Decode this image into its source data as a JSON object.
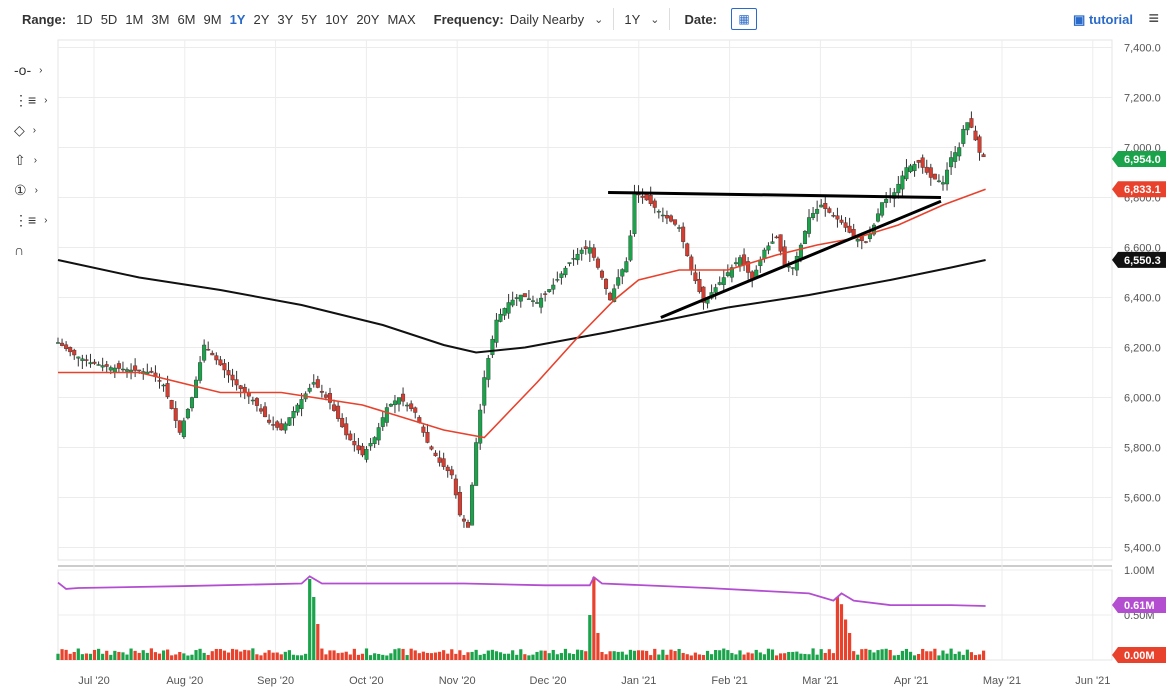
{
  "toolbar": {
    "range_label": "Range:",
    "ranges": [
      "1D",
      "5D",
      "1M",
      "3M",
      "6M",
      "9M",
      "1Y",
      "2Y",
      "3Y",
      "5Y",
      "10Y",
      "20Y",
      "MAX"
    ],
    "active_range": "1Y",
    "frequency_label": "Frequency:",
    "frequency_value": "Daily Nearby",
    "period_value": "1Y",
    "date_label": "Date:",
    "tutorial_label": "tutorial"
  },
  "tools": [
    {
      "icon": "crosshair-icon",
      "glyph": "-o-"
    },
    {
      "icon": "drawing-list-icon",
      "glyph": "⋮≡"
    },
    {
      "icon": "shape-icon",
      "glyph": "◇"
    },
    {
      "icon": "arrow-up-icon",
      "glyph": "⇧"
    },
    {
      "icon": "number-icon",
      "glyph": "①"
    },
    {
      "icon": "fibonacci-icon",
      "glyph": "⋮≡"
    },
    {
      "icon": "magnet-icon",
      "glyph": "∩"
    }
  ],
  "chart_data": {
    "type": "candlestick",
    "price_axis": {
      "ticks": [
        "7,400.0",
        "7,200.0",
        "7,000.0",
        "6,800.0",
        "6,600.0",
        "6,400.0",
        "6,200.0",
        "6,000.0",
        "5,800.0",
        "5,600.0",
        "5,400.0"
      ],
      "ylim": [
        5350,
        7430
      ]
    },
    "volume_axis": {
      "ticks": [
        "1.00M",
        "0.50M"
      ]
    },
    "x_ticks": [
      "Jul '20",
      "Aug '20",
      "Sep '20",
      "Oct '20",
      "Nov '20",
      "Dec '20",
      "Jan '21",
      "Feb '21",
      "Mar '21",
      "Apr '21",
      "May '21",
      "Jun '21"
    ],
    "badges": [
      {
        "label": "6,954.0",
        "value": 6954.0,
        "color": "#1aa34a",
        "axis": "price"
      },
      {
        "label": "6,833.1",
        "value": 6833.1,
        "color": "#e8412c",
        "axis": "price"
      },
      {
        "label": "6,550.3",
        "value": 6550.3,
        "color": "#111111",
        "axis": "price"
      },
      {
        "label": "0.61M",
        "value": 0.61,
        "color": "#b34ed1",
        "axis": "volume"
      },
      {
        "label": "0.00M",
        "value": 0.0,
        "color": "#e8412c",
        "axis": "volume"
      }
    ],
    "price_path": [
      [
        0,
        6220
      ],
      [
        8,
        6170
      ],
      [
        16,
        6140
      ],
      [
        26,
        6120
      ],
      [
        36,
        6110
      ],
      [
        46,
        6100
      ],
      [
        52,
        6050
      ],
      [
        60,
        5860
      ],
      [
        66,
        6000
      ],
      [
        72,
        6210
      ],
      [
        80,
        6130
      ],
      [
        88,
        6050
      ],
      [
        96,
        5990
      ],
      [
        104,
        5900
      ],
      [
        110,
        5870
      ],
      [
        118,
        5970
      ],
      [
        126,
        6060
      ],
      [
        134,
        5980
      ],
      [
        142,
        5850
      ],
      [
        150,
        5770
      ],
      [
        156,
        5840
      ],
      [
        162,
        5960
      ],
      [
        168,
        6000
      ],
      [
        176,
        5940
      ],
      [
        182,
        5820
      ],
      [
        188,
        5740
      ],
      [
        194,
        5690
      ],
      [
        198,
        5530
      ],
      [
        202,
        5480
      ],
      [
        206,
        5820
      ],
      [
        210,
        6080
      ],
      [
        216,
        6310
      ],
      [
        222,
        6380
      ],
      [
        228,
        6410
      ],
      [
        236,
        6380
      ],
      [
        244,
        6450
      ],
      [
        252,
        6540
      ],
      [
        258,
        6590
      ],
      [
        262,
        6600
      ],
      [
        268,
        6480
      ],
      [
        272,
        6390
      ],
      [
        276,
        6480
      ],
      [
        281,
        6560
      ],
      [
        284,
        6820
      ],
      [
        290,
        6790
      ],
      [
        298,
        6730
      ],
      [
        306,
        6680
      ],
      [
        312,
        6510
      ],
      [
        318,
        6380
      ],
      [
        324,
        6440
      ],
      [
        330,
        6500
      ],
      [
        336,
        6560
      ],
      [
        342,
        6470
      ],
      [
        348,
        6590
      ],
      [
        354,
        6640
      ],
      [
        358,
        6530
      ],
      [
        362,
        6520
      ],
      [
        366,
        6610
      ],
      [
        370,
        6720
      ],
      [
        376,
        6770
      ],
      [
        380,
        6740
      ],
      [
        386,
        6700
      ],
      [
        392,
        6640
      ],
      [
        398,
        6620
      ],
      [
        402,
        6690
      ],
      [
        406,
        6780
      ],
      [
        412,
        6820
      ],
      [
        418,
        6920
      ],
      [
        424,
        6940
      ],
      [
        430,
        6880
      ],
      [
        436,
        6860
      ],
      [
        440,
        6960
      ],
      [
        444,
        7000
      ],
      [
        447,
        7110
      ],
      [
        450,
        7080
      ],
      [
        454,
        6980
      ],
      [
        457,
        6954
      ]
    ],
    "xrange": [
      0,
      470
    ],
    "ma50": [
      [
        0,
        6100
      ],
      [
        40,
        6100
      ],
      [
        80,
        6020
      ],
      [
        110,
        6020
      ],
      [
        150,
        5970
      ],
      [
        190,
        5870
      ],
      [
        210,
        5840
      ],
      [
        236,
        6060
      ],
      [
        256,
        6240
      ],
      [
        274,
        6390
      ],
      [
        286,
        6470
      ],
      [
        306,
        6510
      ],
      [
        330,
        6510
      ],
      [
        354,
        6570
      ],
      [
        374,
        6610
      ],
      [
        394,
        6640
      ],
      [
        414,
        6690
      ],
      [
        436,
        6770
      ],
      [
        457,
        6833
      ]
    ],
    "ma200": [
      [
        0,
        6550
      ],
      [
        40,
        6480
      ],
      [
        80,
        6430
      ],
      [
        120,
        6370
      ],
      [
        160,
        6290
      ],
      [
        190,
        6210
      ],
      [
        206,
        6180
      ],
      [
        230,
        6200
      ],
      [
        270,
        6260
      ],
      [
        300,
        6310
      ],
      [
        330,
        6360
      ],
      [
        370,
        6410
      ],
      [
        410,
        6470
      ],
      [
        440,
        6520
      ],
      [
        457,
        6550
      ]
    ],
    "volume_avg_path": [
      [
        0,
        0.86
      ],
      [
        4,
        0.79
      ],
      [
        10,
        0.8
      ],
      [
        60,
        0.82
      ],
      [
        120,
        0.85
      ],
      [
        124,
        0.93
      ],
      [
        130,
        0.85
      ],
      [
        200,
        0.85
      ],
      [
        240,
        0.83
      ],
      [
        262,
        0.83
      ],
      [
        264,
        0.92
      ],
      [
        268,
        0.85
      ],
      [
        320,
        0.8
      ],
      [
        370,
        0.74
      ],
      [
        382,
        0.66
      ],
      [
        386,
        0.74
      ],
      [
        392,
        0.66
      ],
      [
        410,
        0.61
      ],
      [
        440,
        0.61
      ],
      [
        457,
        0.6
      ]
    ],
    "volume_spikes": [
      {
        "x": 124,
        "v": 0.9
      },
      {
        "x": 126,
        "v": 0.7
      },
      {
        "x": 128,
        "v": 0.4
      },
      {
        "x": 264,
        "v": 0.92
      },
      {
        "x": 262,
        "v": 0.5
      },
      {
        "x": 266,
        "v": 0.3
      },
      {
        "x": 384,
        "v": 0.7
      },
      {
        "x": 386,
        "v": 0.62
      },
      {
        "x": 388,
        "v": 0.45
      },
      {
        "x": 390,
        "v": 0.3
      }
    ],
    "trendlines": [
      {
        "from": [
          271,
          6820
        ],
        "to": [
          435,
          6800
        ]
      },
      {
        "from": [
          297,
          6320
        ],
        "to": [
          435,
          6785
        ]
      }
    ]
  }
}
